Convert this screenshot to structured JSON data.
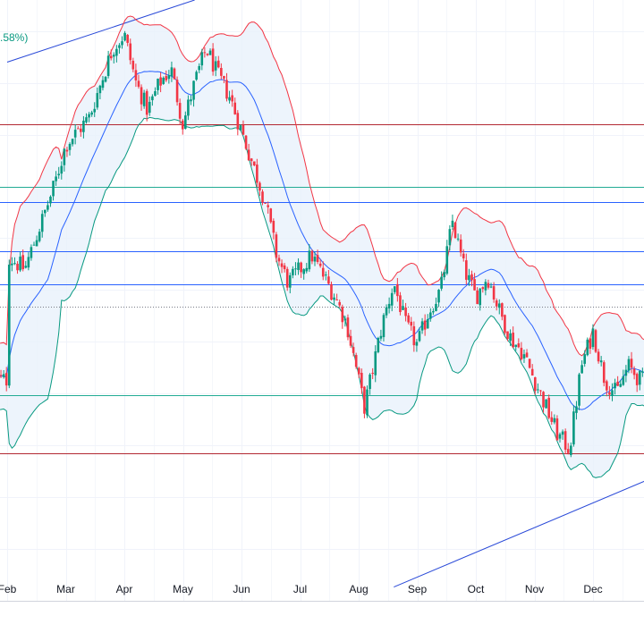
{
  "chart_data": {
    "type": "candlestick",
    "legend_fragment": ".58%)",
    "x_tick_labels": [
      "Feb",
      "Mar",
      "Apr",
      "May",
      "Jun",
      "Jul",
      "Aug",
      "Sep",
      "Oct",
      "Nov",
      "Dec"
    ],
    "grid": true,
    "colors": {
      "up": "#089981",
      "down": "#f23645",
      "basis": "#2962ff",
      "upper_band": "#f23645",
      "lower_band": "#089981",
      "band_fill": "#e8f1fb",
      "support_resistance_red": "#b22833",
      "level_teal": "#22ab94",
      "level_blue": "#2962ff",
      "trend_channel": "#2949d8",
      "legend_text": "#089981"
    },
    "indicator": "Bollinger Bands",
    "horizontal_levels": [
      {
        "kind": "red",
        "y": 1.245
      },
      {
        "kind": "teal",
        "y": 1.2
      },
      {
        "kind": "blue",
        "y": 1.189
      },
      {
        "kind": "blue",
        "y": 1.153
      },
      {
        "kind": "blue",
        "y": 1.129
      },
      {
        "kind": "dotted",
        "y": 1.113
      },
      {
        "kind": "teal",
        "y": 1.049
      },
      {
        "kind": "red",
        "y": 1.007
      }
    ],
    "y_range": [
      0.9,
      1.335
    ],
    "trendlines": [
      {
        "points": [
          [
            0.0,
            1.29
          ],
          [
            3.2,
            1.335
          ]
        ]
      },
      {
        "points": [
          [
            6.6,
            0.91
          ],
          [
            10.9,
            0.987
          ]
        ]
      }
    ],
    "price_path": [
      [
        0.0,
        1.15
      ],
      [
        0.3,
        1.14
      ],
      [
        0.55,
        1.17
      ],
      [
        0.8,
        1.2
      ],
      [
        1.0,
        1.23
      ],
      [
        1.2,
        1.24
      ],
      [
        1.4,
        1.25
      ],
      [
        1.6,
        1.275
      ],
      [
        1.8,
        1.3
      ],
      [
        2.0,
        1.31
      ],
      [
        2.2,
        1.275
      ],
      [
        2.4,
        1.255
      ],
      [
        2.6,
        1.275
      ],
      [
        2.8,
        1.285
      ],
      [
        3.0,
        1.245
      ],
      [
        3.2,
        1.275
      ],
      [
        3.4,
        1.3
      ],
      [
        3.6,
        1.28
      ],
      [
        3.8,
        1.265
      ],
      [
        4.0,
        1.24
      ],
      [
        4.2,
        1.215
      ],
      [
        4.4,
        1.19
      ],
      [
        4.6,
        1.15
      ],
      [
        4.8,
        1.13
      ],
      [
        5.0,
        1.14
      ],
      [
        5.2,
        1.15
      ],
      [
        5.4,
        1.135
      ],
      [
        5.6,
        1.12
      ],
      [
        5.8,
        1.1
      ],
      [
        6.0,
        1.06
      ],
      [
        6.1,
        1.04
      ],
      [
        6.2,
        1.06
      ],
      [
        6.4,
        1.1
      ],
      [
        6.6,
        1.13
      ],
      [
        6.8,
        1.1
      ],
      [
        7.0,
        1.085
      ],
      [
        7.2,
        1.11
      ],
      [
        7.4,
        1.125
      ],
      [
        7.6,
        1.175
      ],
      [
        7.8,
        1.14
      ],
      [
        8.0,
        1.12
      ],
      [
        8.2,
        1.135
      ],
      [
        8.4,
        1.11
      ],
      [
        8.6,
        1.09
      ],
      [
        8.8,
        1.08
      ],
      [
        9.0,
        1.06
      ],
      [
        9.2,
        1.04
      ],
      [
        9.4,
        1.02
      ],
      [
        9.6,
        1.01
      ],
      [
        9.8,
        1.07
      ],
      [
        10.0,
        1.095
      ],
      [
        10.2,
        1.06
      ],
      [
        10.4,
        1.05
      ],
      [
        10.6,
        1.07
      ],
      [
        10.8,
        1.06
      ]
    ]
  }
}
